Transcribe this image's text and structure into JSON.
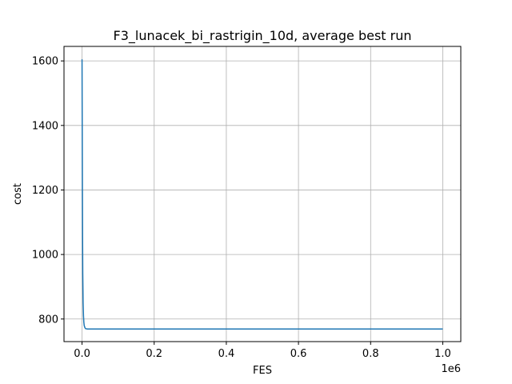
{
  "chart_data": {
    "type": "line",
    "title": "F3_lunacek_bi_rastrigin_10d, average best run",
    "xlabel": "FES",
    "ylabel": "cost",
    "x_offset_label": "1e6",
    "xlim": [
      -50000,
      1050000
    ],
    "ylim": [
      730,
      1645
    ],
    "xticks": [
      0,
      200000,
      400000,
      600000,
      800000,
      1000000
    ],
    "xtick_labels": [
      "0.0",
      "0.2",
      "0.4",
      "0.6",
      "0.8",
      "1.0"
    ],
    "yticks": [
      800,
      1000,
      1200,
      1400,
      1600
    ],
    "ytick_labels": [
      "800",
      "1000",
      "1200",
      "1400",
      "1600"
    ],
    "grid": true,
    "legend": null,
    "series": [
      {
        "color": "#1f77b4",
        "x": [
          0,
          500,
          1000,
          1500,
          2000,
          3000,
          4000,
          5000,
          6000,
          8000,
          10000,
          15000,
          30000,
          100000,
          300000,
          600000,
          1000000
        ],
        "y": [
          1605,
          1400,
          1200,
          1050,
          940,
          850,
          810,
          790,
          780,
          773,
          770,
          769,
          769,
          769,
          769,
          769,
          769
        ]
      }
    ]
  }
}
